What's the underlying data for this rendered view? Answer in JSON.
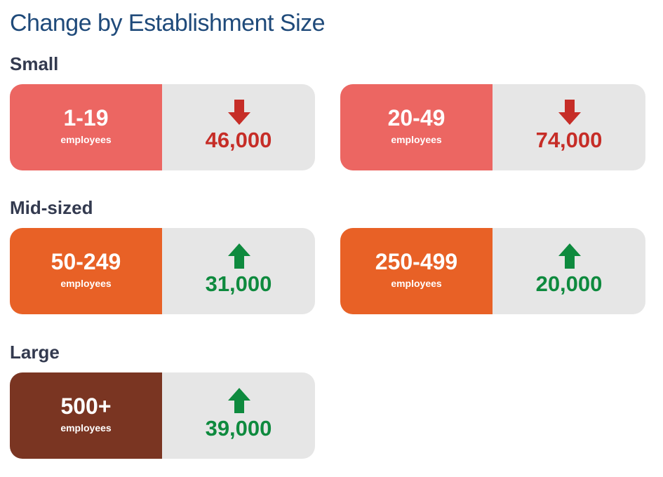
{
  "title": "Change by Establishment Size",
  "groups": [
    {
      "label": "Small",
      "cards": [
        {
          "range": "1-19",
          "unit": "employees",
          "change": "46,000",
          "direction": "down",
          "color": "#ec6662"
        },
        {
          "range": "20-49",
          "unit": "employees",
          "change": "74,000",
          "direction": "down",
          "color": "#ec6662"
        }
      ]
    },
    {
      "label": "Mid-sized",
      "cards": [
        {
          "range": "50-249",
          "unit": "employees",
          "change": "31,000",
          "direction": "up",
          "color": "#e86126"
        },
        {
          "range": "250-499",
          "unit": "employees",
          "change": "20,000",
          "direction": "up",
          "color": "#e86126"
        }
      ]
    },
    {
      "label": "Large",
      "cards": [
        {
          "range": "500+",
          "unit": "employees",
          "change": "39,000",
          "direction": "up",
          "color": "#7a3522"
        }
      ]
    }
  ]
}
